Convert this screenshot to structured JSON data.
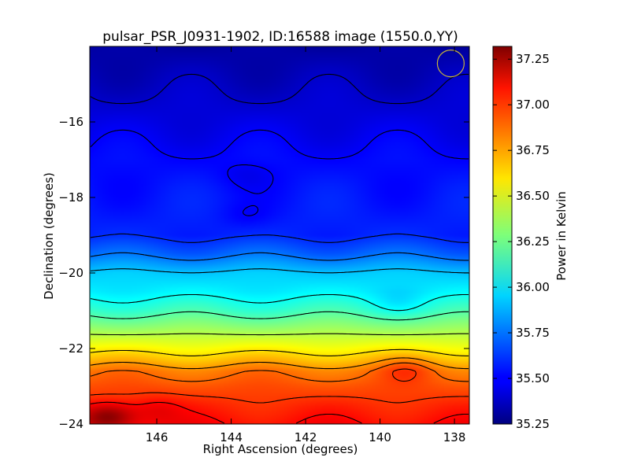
{
  "chart_data": {
    "type": "heatmap",
    "title": "pulsar_PSR_J0931-1902, ID:16588 image (1550.0,YY)",
    "xlabel": "Right Ascension (degrees)",
    "ylabel": "Declination (degrees)",
    "colorbar_label": "Power in Kelvin",
    "colormap": "jet",
    "xlim": [
      147.8,
      137.6
    ],
    "ylim": [
      -24.0,
      -14.0
    ],
    "x_ticks": [
      146,
      144,
      142,
      140,
      138
    ],
    "x_tick_labels": [
      "146",
      "144",
      "142",
      "140",
      "138"
    ],
    "y_ticks": [
      -16,
      -18,
      -20,
      -22,
      -24
    ],
    "y_tick_labels": [
      "−16",
      "−18",
      "−20",
      "−22",
      "−24"
    ],
    "colorbar_range": [
      35.25,
      37.32
    ],
    "colorbar_ticks": [
      35.25,
      35.5,
      35.75,
      36.0,
      36.25,
      36.5,
      36.75,
      37.0,
      37.25
    ],
    "colorbar_tick_labels": [
      "35.25",
      "35.50",
      "35.75",
      "36.00",
      "36.25",
      "36.50",
      "36.75",
      "37.00",
      "37.25"
    ],
    "dec_profile": {
      "dec": [
        -14.0,
        -15.0,
        -16.0,
        -17.0,
        -18.0,
        -19.0,
        -19.5,
        -20.0,
        -20.5,
        -21.0,
        -21.5,
        -22.0,
        -22.3,
        -22.6,
        -23.0,
        -23.5,
        -24.0
      ],
      "power": [
        35.32,
        35.38,
        35.45,
        35.52,
        35.55,
        35.58,
        35.72,
        35.92,
        36.0,
        36.15,
        36.35,
        36.55,
        36.68,
        36.82,
        36.9,
        36.98,
        37.05
      ]
    },
    "features": [
      {
        "ra": 139.3,
        "dec": -22.55,
        "delta": 0.12
      },
      {
        "ra": 143.6,
        "dec": -17.4,
        "delta": -0.05
      },
      {
        "ra": 143.6,
        "dec": -18.5,
        "delta": -0.05
      },
      {
        "ra": 147.3,
        "dec": -23.8,
        "delta": 0.3
      },
      {
        "ra": 146.0,
        "dec": -23.6,
        "delta": 0.1
      },
      {
        "ra": 139.5,
        "dec": -20.8,
        "delta": -0.08
      }
    ],
    "marker_circle": {
      "ra": 138.1,
      "dec": -14.45
    },
    "colors": {
      "contour": "#000000",
      "circle": "#c8b43a"
    }
  }
}
